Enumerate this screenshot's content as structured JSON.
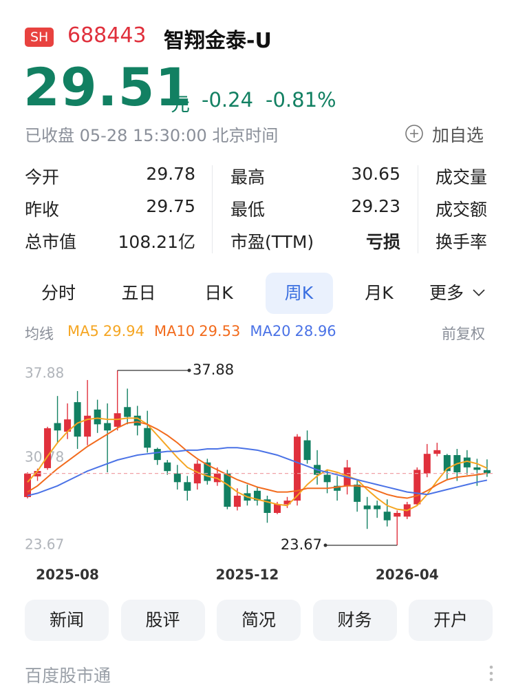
{
  "header": {
    "exchange": "SH",
    "code": "688443",
    "name": "智翔金泰-U"
  },
  "quote": {
    "price": 29.51,
    "unit": "元",
    "change": "-0.24",
    "change_pct": "-0.81%",
    "status": "已收盘 05-28 15:30:00 北京时间",
    "watch": "加自选"
  },
  "stats": [
    [
      "今开",
      "29.78",
      "最高",
      "30.65",
      "成交量"
    ],
    [
      "昨收",
      "29.75",
      "最低",
      "29.23",
      "成交额"
    ],
    [
      "总市值",
      "108.21亿",
      "市盈(TTM)",
      "亏损",
      "换手率"
    ]
  ],
  "tabs": [
    "分时",
    "五日",
    "日K",
    "周K",
    "月K",
    "更多"
  ],
  "ma_label": "均线",
  "adjust": "前复权",
  "chart_data": {
    "type": "candlestick",
    "up_color": "#e0303c",
    "down_color": "#128062",
    "ylim": [
      23.67,
      37.88
    ],
    "yticks": [
      37.88,
      30.78,
      23.67
    ],
    "categories": [
      null,
      null,
      null,
      null,
      "2025-08",
      null,
      null,
      null,
      null,
      null,
      null,
      null,
      null,
      null,
      null,
      null,
      null,
      null,
      null,
      null,
      null,
      null,
      "2025-12",
      null,
      null,
      null,
      null,
      null,
      null,
      null,
      null,
      null,
      null,
      null,
      null,
      null,
      null,
      null,
      "2026-04",
      null,
      null,
      null,
      null,
      null,
      null,
      null,
      null
    ],
    "open": [
      27.59,
      29.27,
      29.94,
      33.6,
      32.9,
      35.3,
      32.5,
      34.7,
      33.6,
      33.3,
      34.9,
      34.2,
      33.2,
      31.5,
      30.4,
      29.5,
      28.8,
      28.7,
      30.4,
      28.8,
      29.5,
      26.8,
      27.9,
      28.1,
      27.4,
      26.3,
      27.0,
      27.3,
      32.2,
      30.2,
      29.4,
      28.5,
      28.5,
      28.6,
      26.9,
      26.9,
      26.4,
      26.0,
      26.0,
      27.0,
      29.5,
      31.1,
      31.0,
      31.0,
      30.8,
      30.0,
      29.78
    ],
    "high": [
      29.6,
      29.9,
      33.3,
      35.8,
      35.2,
      36.2,
      37.1,
      35.5,
      35.2,
      37.88,
      36.4,
      35.0,
      34.6,
      31.6,
      30.6,
      30.2,
      29.3,
      30.6,
      30.7,
      30.0,
      29.8,
      28.3,
      28.6,
      28.4,
      27.7,
      27.2,
      27.6,
      32.7,
      33.0,
      31.4,
      29.8,
      29.3,
      30.6,
      29.0,
      27.6,
      27.3,
      27.4,
      26.5,
      27.2,
      30.0,
      31.9,
      32.0,
      31.1,
      31.5,
      31.4,
      30.7,
      30.65
    ],
    "low": [
      27.48,
      28.9,
      29.8,
      32.0,
      32.3,
      31.5,
      31.8,
      32.8,
      29.6,
      33.0,
      33.5,
      32.6,
      31.2,
      30.2,
      29.4,
      28.2,
      27.3,
      28.2,
      28.6,
      28.5,
      26.6,
      26.5,
      26.9,
      26.9,
      25.5,
      26.2,
      26.7,
      26.9,
      30.3,
      28.6,
      27.9,
      27.3,
      27.8,
      26.4,
      25.0,
      25.9,
      25.2,
      23.67,
      25.8,
      26.9,
      29.2,
      30.9,
      29.0,
      28.9,
      29.4,
      28.5,
      29.23
    ],
    "close": [
      29.49,
      29.71,
      33.18,
      33.0,
      33.9,
      32.5,
      34.2,
      33.5,
      33.0,
      34.4,
      34.1,
      33.4,
      31.6,
      30.6,
      29.7,
      28.8,
      28.1,
      30.3,
      28.9,
      29.5,
      26.8,
      27.7,
      27.3,
      27.3,
      26.3,
      27.0,
      27.3,
      32.5,
      30.6,
      29.4,
      28.8,
      28.1,
      30.0,
      27.2,
      26.6,
      26.6,
      25.7,
      26.3,
      27.0,
      29.8,
      31.1,
      31.4,
      29.7,
      29.6,
      30.0,
      29.8,
      29.51
    ],
    "series": [
      {
        "name": "MA5",
        "color": "#f5a623",
        "values": [
          28.8,
          29.7,
          30.9,
          32.0,
          32.9,
          33.6,
          33.9,
          34.0,
          33.9,
          33.9,
          34.0,
          34.0,
          33.5,
          32.6,
          31.7,
          30.8,
          30.0,
          29.6,
          29.3,
          29.1,
          28.6,
          28.0,
          27.6,
          27.4,
          27.2,
          27.0,
          26.9,
          27.7,
          28.6,
          29.3,
          29.8,
          29.6,
          29.3,
          29.0,
          28.2,
          27.5,
          26.9,
          26.6,
          26.5,
          26.9,
          27.8,
          28.9,
          29.9,
          30.3,
          30.5,
          30.3,
          29.94
        ]
      },
      {
        "name": "MA10",
        "color": "#f26b1d",
        "values": [
          28.0,
          28.5,
          29.2,
          29.9,
          30.5,
          31.1,
          31.7,
          32.2,
          32.7,
          33.2,
          33.6,
          33.7,
          33.5,
          33.1,
          32.6,
          32.0,
          31.3,
          30.7,
          30.2,
          29.8,
          29.4,
          29.0,
          28.7,
          28.4,
          28.2,
          28.0,
          28.0,
          28.1,
          28.3,
          28.3,
          28.3,
          28.4,
          28.5,
          28.5,
          28.4,
          28.1,
          27.8,
          27.6,
          27.5,
          27.7,
          28.1,
          28.6,
          29.0,
          29.2,
          29.3,
          29.4,
          29.53
        ]
      },
      {
        "name": "MA20",
        "color": "#4a72e6",
        "values": [
          27.7,
          27.9,
          28.2,
          28.5,
          28.9,
          29.3,
          29.7,
          30.0,
          30.3,
          30.6,
          30.8,
          31.0,
          31.1,
          31.2,
          31.3,
          31.3,
          31.4,
          31.4,
          31.5,
          31.5,
          31.6,
          31.6,
          31.5,
          31.4,
          31.2,
          31.0,
          30.7,
          30.4,
          30.1,
          29.8,
          29.6,
          29.4,
          29.2,
          29.0,
          28.8,
          28.6,
          28.4,
          28.2,
          28.0,
          27.9,
          27.8,
          28.0,
          28.2,
          28.4,
          28.6,
          28.8,
          28.96
        ]
      }
    ]
  },
  "buttons": [
    "新闻",
    "股评",
    "简况",
    "财务",
    "开户"
  ],
  "footer": "百度股市通"
}
